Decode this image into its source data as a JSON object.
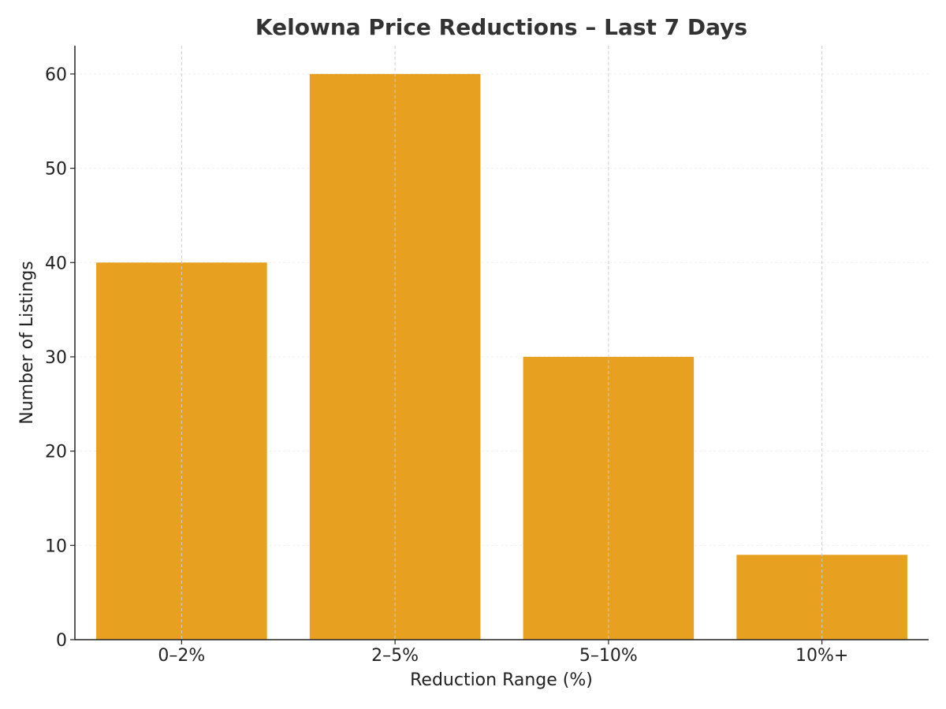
{
  "chart_data": {
    "type": "bar",
    "title": "Kelowna Price Reductions – Last 7 Days",
    "xlabel": "Reduction Range (%)",
    "ylabel": "Number of Listings",
    "categories": [
      "0–2%",
      "2–5%",
      "5–10%",
      "10%+"
    ],
    "values": [
      40,
      60,
      30,
      9
    ],
    "ylim": [
      0,
      63
    ],
    "yticks": [
      0,
      10,
      20,
      30,
      40,
      50,
      60
    ],
    "grid": true,
    "legend": "none"
  },
  "colors": {
    "bar": "#e8a020",
    "axis": "#222222",
    "grid": "#cccccc",
    "title": "#333333"
  }
}
